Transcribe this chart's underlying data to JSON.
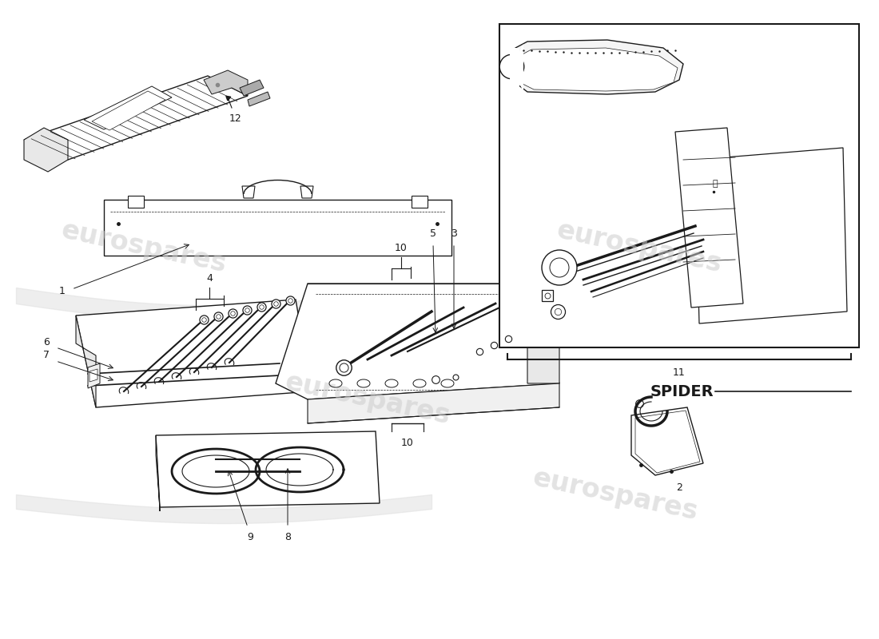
{
  "bg_color": "#ffffff",
  "line_color": "#1a1a1a",
  "watermark_color": "#cccccc",
  "watermark_text": "eurospares",
  "spider_text": "SPIDER",
  "fig_w": 11.0,
  "fig_h": 8.0,
  "dpi": 100
}
